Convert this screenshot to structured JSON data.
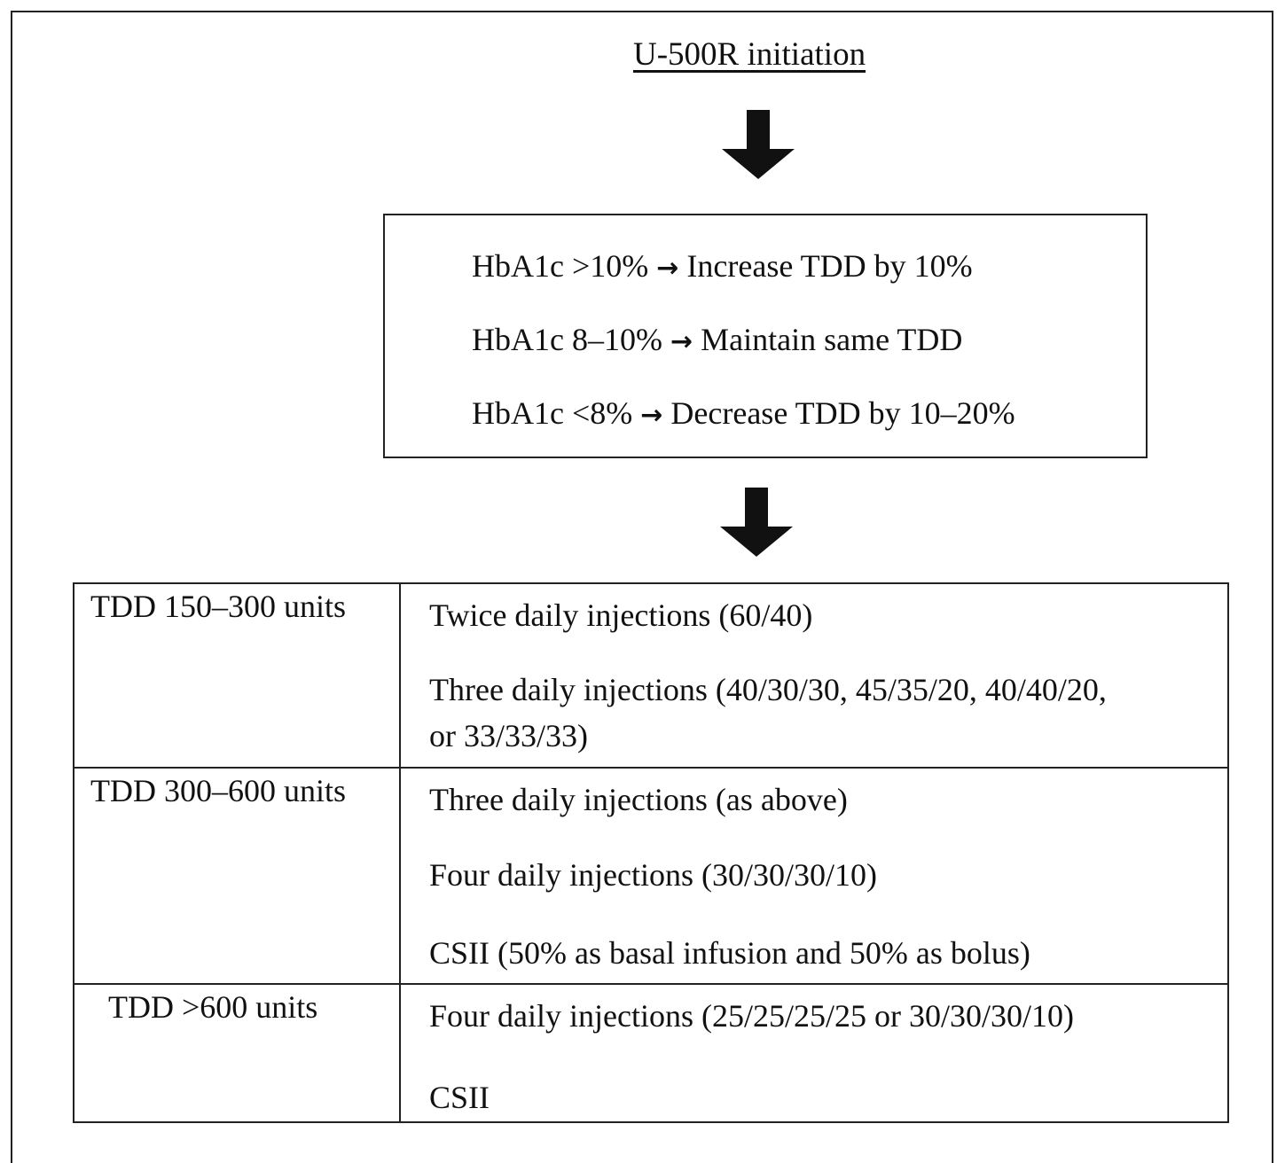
{
  "title": "U-500R initiation",
  "hba1c_rules": [
    {
      "condition": "HbA1c >10%",
      "action": "Increase TDD by 10%"
    },
    {
      "condition": "HbA1c 8–10%",
      "action": "Maintain same TDD"
    },
    {
      "condition": "HbA1c <8%",
      "action": "Decrease TDD by 10–20%"
    }
  ],
  "arrow_symbol": "→",
  "dose_table": [
    {
      "range": "TDD 150–300 units",
      "options": [
        "Twice daily injections (60/40)",
        "Three daily injections (40/30/30, 45/35/20, 40/40/20,",
        "or 33/33/33)"
      ]
    },
    {
      "range": "TDD 300–600 units",
      "options": [
        "Three daily injections (as above)",
        "Four daily injections (30/30/30/10)",
        "CSII (50% as basal infusion and 50% as bolus)"
      ]
    },
    {
      "range": "TDD >600 units",
      "options": [
        "Four daily injections (25/25/25/25 or 30/30/30/10)",
        "CSII"
      ]
    }
  ]
}
